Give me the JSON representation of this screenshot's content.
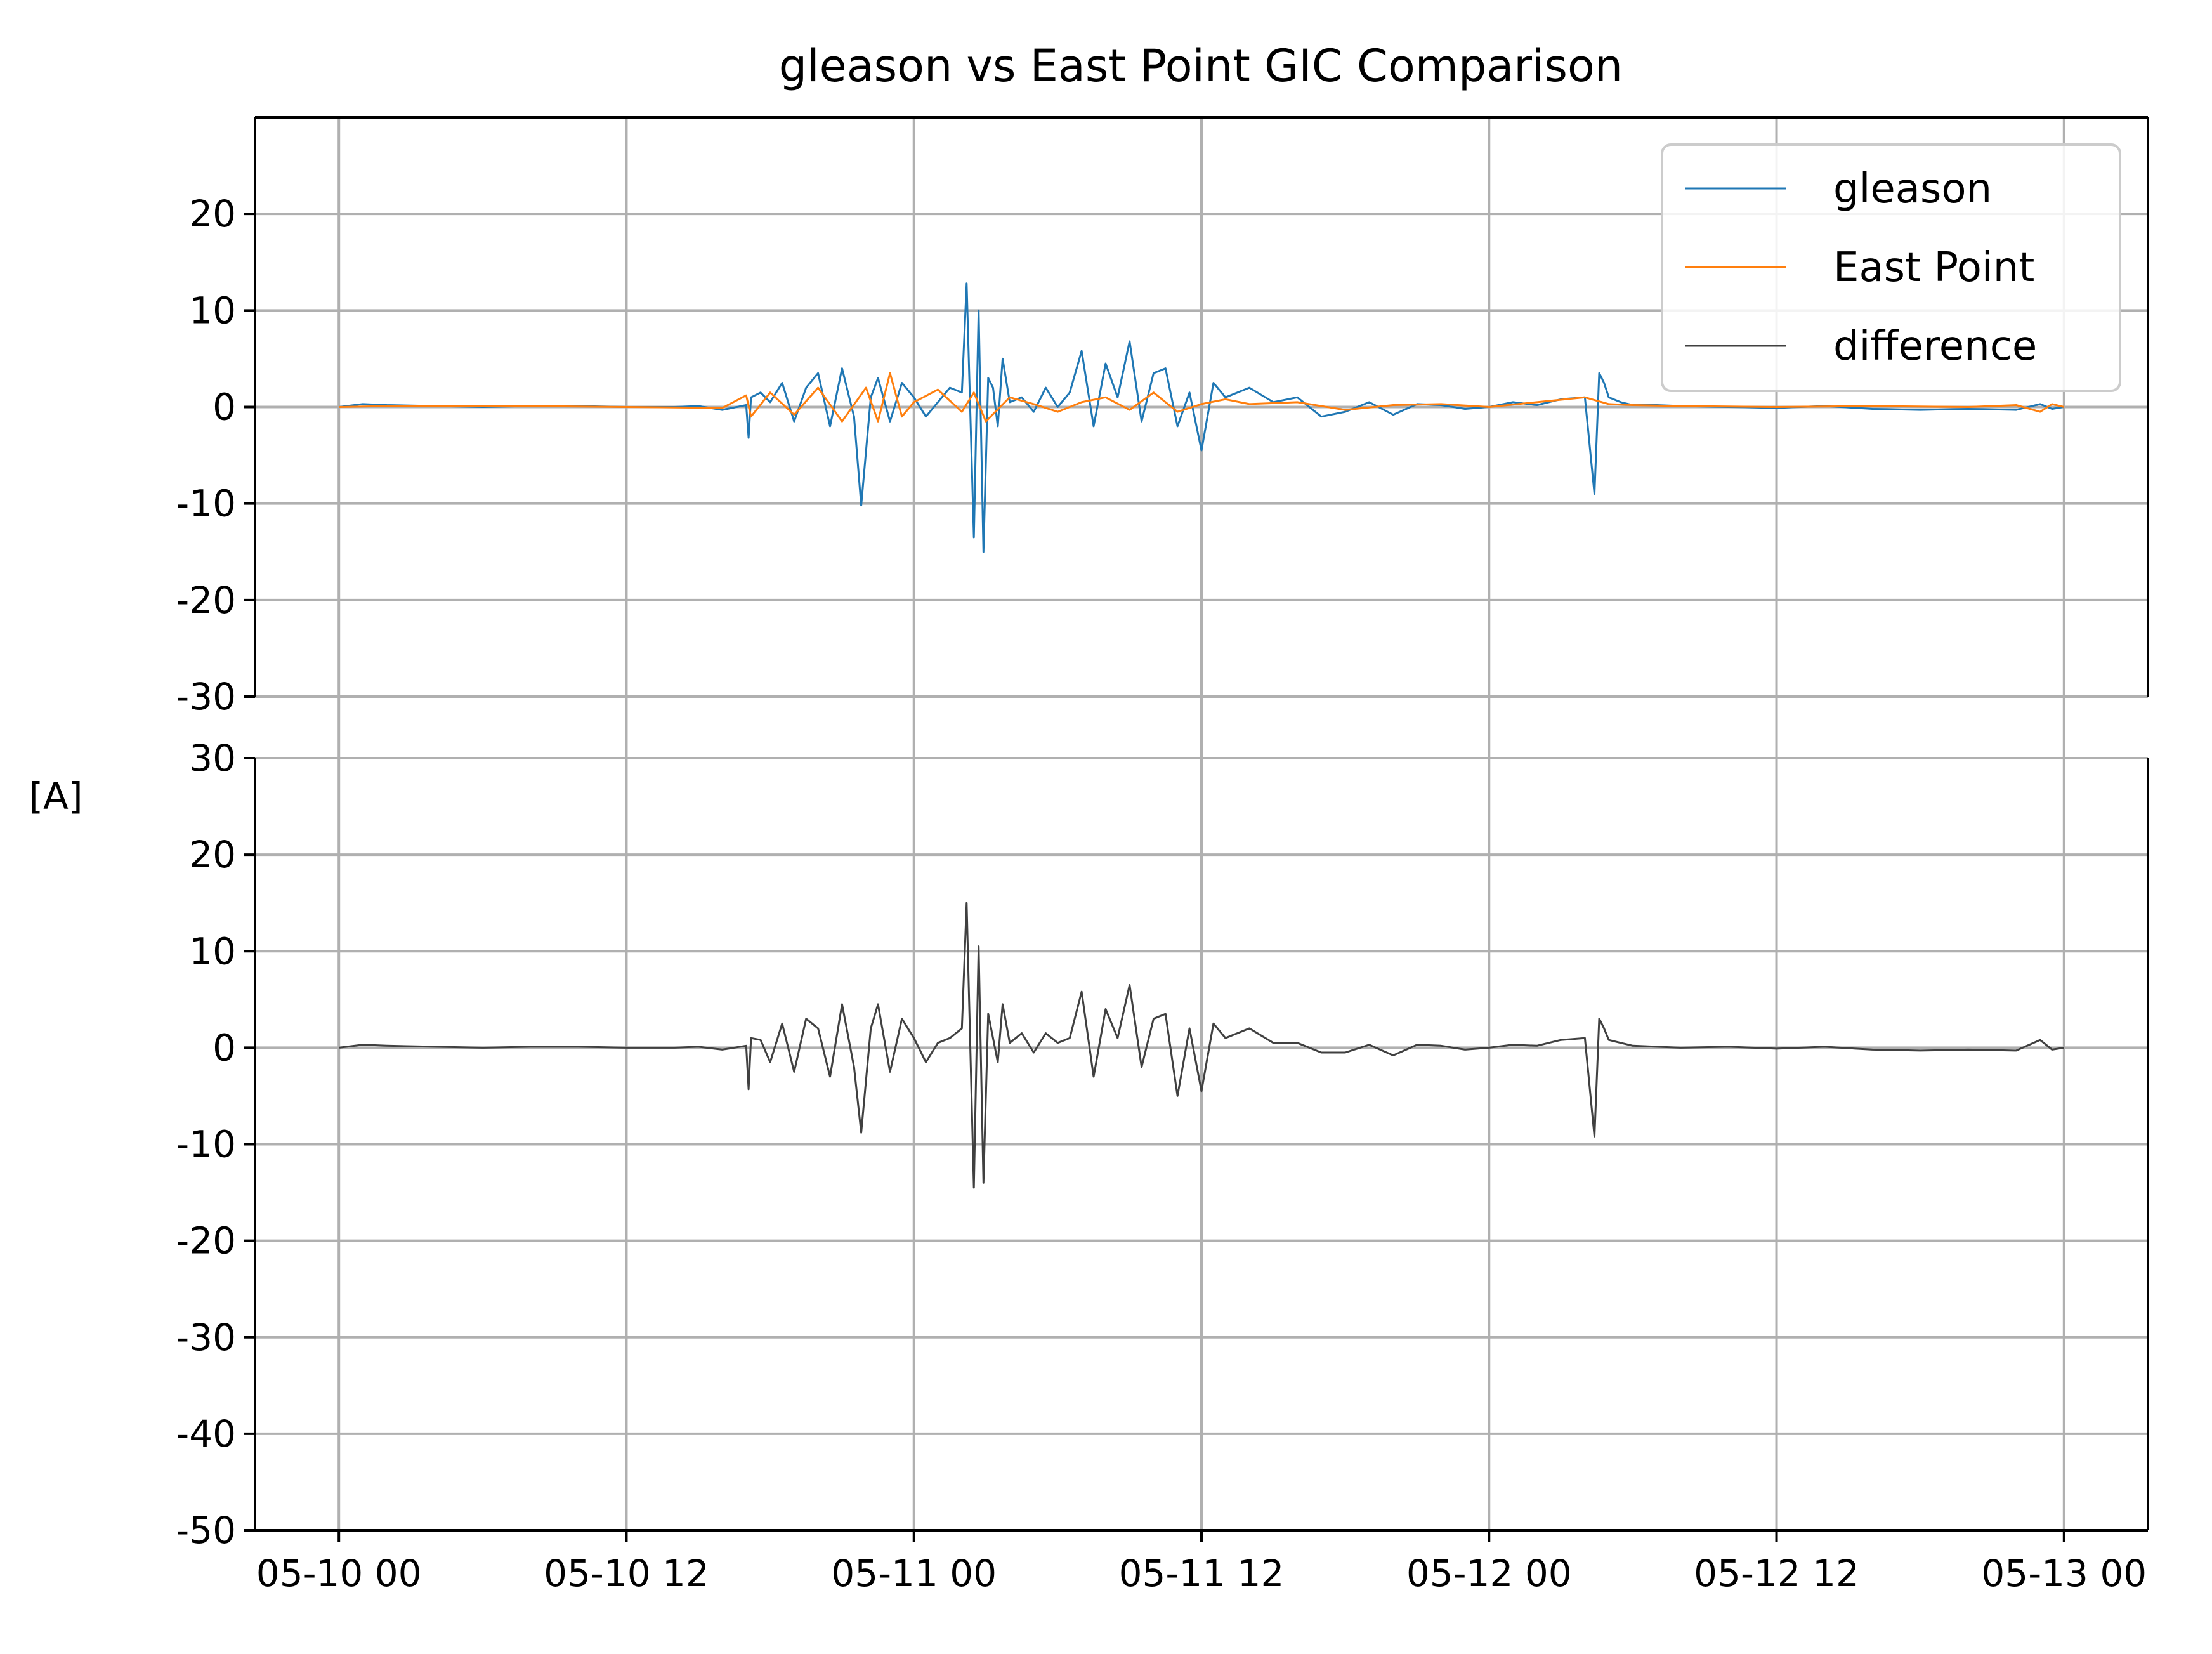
{
  "chart_data": {
    "type": "line",
    "title": "gleason vs East Point GIC Comparison",
    "ylabel": "[A]",
    "xlabel": "",
    "grid": true,
    "legend": {
      "placement": "top-right",
      "entries": [
        {
          "name": "gleason",
          "color": "#1f77b4"
        },
        {
          "name": "East Point",
          "color": "#ff7f0e"
        },
        {
          "name": "difference",
          "color": "#404040"
        }
      ]
    },
    "x_axis": {
      "unit": "hours",
      "range": [
        -3.5,
        75.5
      ],
      "ticks": [
        0,
        12,
        24,
        36,
        48,
        60,
        72
      ],
      "tick_labels": [
        "05-10 00",
        "05-10 12",
        "05-11 00",
        "05-11 12",
        "05-12 00",
        "05-12 12",
        "05-13 00"
      ]
    },
    "panels": [
      {
        "name": "top",
        "ylim": [
          -30,
          30
        ],
        "yticks": [
          20,
          10,
          0,
          -10,
          -20,
          -30
        ],
        "ytick_labels": [
          "20",
          "10",
          "0",
          "-10",
          "-20",
          "-30"
        ],
        "series": [
          {
            "name": "gleason",
            "color": "#1f77b4",
            "x": [
              0,
              1,
              2,
              4,
              6,
              8,
              10,
              12,
              14,
              15,
              16,
              17,
              17.1,
              17.2,
              17.6,
              18,
              18.5,
              19,
              19.5,
              20,
              20.5,
              21,
              21.5,
              21.8,
              22.2,
              22.5,
              23,
              23.5,
              24,
              24.5,
              25,
              25.5,
              26,
              26.2,
              26.5,
              26.7,
              26.9,
              27.1,
              27.3,
              27.5,
              27.7,
              28,
              28.5,
              29,
              29.5,
              30,
              30.5,
              31,
              31.5,
              32,
              32.5,
              33,
              33.5,
              34,
              34.5,
              35,
              35.5,
              36,
              36.5,
              37,
              38,
              39,
              40,
              41,
              42,
              43,
              44,
              45,
              46,
              47,
              48,
              49,
              50,
              51,
              52,
              52.4,
              52.6,
              52.8,
              53,
              53.5,
              54,
              55,
              56,
              58,
              60,
              62,
              64,
              66,
              68,
              70,
              71,
              71.5,
              72
            ],
            "y": [
              0,
              0.3,
              0.2,
              0.1,
              0,
              0.1,
              0.1,
              0,
              0,
              0.1,
              -0.3,
              0.2,
              -3.2,
              1.0,
              1.5,
              0.5,
              2.5,
              -1.5,
              2.0,
              3.5,
              -2.0,
              4.0,
              -1.0,
              -10.2,
              1.0,
              3.0,
              -1.5,
              2.5,
              1.0,
              -1.0,
              0.5,
              2.0,
              1.5,
              12.8,
              -13.5,
              10.0,
              -15.0,
              3.0,
              2.0,
              -2.0,
              5.0,
              0.5,
              1.0,
              -0.5,
              2.0,
              0.0,
              1.5,
              5.8,
              -2.0,
              4.5,
              1.0,
              6.8,
              -1.5,
              3.5,
              4.0,
              -2.0,
              1.5,
              -4.5,
              2.5,
              1.0,
              2.0,
              0.5,
              1.0,
              -1.0,
              -0.5,
              0.5,
              -0.8,
              0.3,
              0.2,
              -0.2,
              0.0,
              0.5,
              0.2,
              0.8,
              1.0,
              -9.0,
              3.5,
              2.5,
              1.0,
              0.5,
              0.2,
              0.2,
              0.1,
              0.0,
              -0.1,
              0.1,
              -0.2,
              -0.3,
              -0.2,
              -0.3,
              0.3,
              -0.2,
              0.0
            ]
          },
          {
            "name": "East Point",
            "color": "#ff7f0e",
            "x": [
              0,
              2,
              4,
              8,
              12,
              16,
              17,
              17.2,
              18,
              19,
              20,
              21,
              22,
              22.5,
              23,
              23.5,
              24,
              25,
              26,
              26.5,
              27,
              28,
              29,
              30,
              31,
              32,
              33,
              34,
              35,
              36,
              37,
              38,
              40,
              42,
              44,
              46,
              48,
              50,
              52,
              53,
              54,
              56,
              60,
              64,
              68,
              70,
              71,
              71.5,
              72
            ],
            "y": [
              0,
              0.1,
              0.1,
              0.1,
              0.0,
              -0.1,
              1.2,
              -1.0,
              1.5,
              -0.8,
              2.0,
              -1.5,
              2.0,
              -1.5,
              3.5,
              -1.0,
              0.5,
              1.8,
              -0.5,
              1.5,
              -1.5,
              1.0,
              0.3,
              -0.5,
              0.5,
              1.0,
              -0.3,
              1.5,
              -0.5,
              0.3,
              0.8,
              0.3,
              0.5,
              -0.3,
              0.2,
              0.3,
              0.0,
              0.5,
              1.0,
              0.3,
              0.2,
              0.1,
              0.0,
              0.1,
              0.0,
              0.2,
              -0.5,
              0.3,
              0.0
            ]
          }
        ]
      },
      {
        "name": "bottom",
        "ylim": [
          -50,
          30
        ],
        "yticks": [
          30,
          20,
          10,
          0,
          -10,
          -20,
          -30,
          -40,
          -50
        ],
        "ytick_labels": [
          "30",
          "20",
          "10",
          "0",
          "-10",
          "-20",
          "-30",
          "-40",
          "-50"
        ],
        "series": [
          {
            "name": "difference",
            "color": "#404040",
            "x": [
              0,
              1,
              2,
              4,
              6,
              8,
              10,
              12,
              14,
              15,
              16,
              17,
              17.1,
              17.2,
              17.6,
              18,
              18.5,
              19,
              19.5,
              20,
              20.5,
              21,
              21.5,
              21.8,
              22.2,
              22.5,
              23,
              23.5,
              24,
              24.5,
              25,
              25.5,
              26,
              26.2,
              26.5,
              26.7,
              26.9,
              27.1,
              27.3,
              27.5,
              27.7,
              28,
              28.5,
              29,
              29.5,
              30,
              30.5,
              31,
              31.5,
              32,
              32.5,
              33,
              33.5,
              34,
              34.5,
              35,
              35.5,
              36,
              36.5,
              37,
              38,
              39,
              40,
              41,
              42,
              43,
              44,
              45,
              46,
              47,
              48,
              49,
              50,
              51,
              52,
              52.4,
              52.6,
              52.8,
              53,
              53.5,
              54,
              55,
              56,
              58,
              60,
              62,
              64,
              66,
              68,
              70,
              71,
              71.5,
              72
            ],
            "y": [
              0,
              0.3,
              0.2,
              0.1,
              0,
              0.1,
              0.1,
              0,
              0,
              0.1,
              -0.2,
              0.2,
              -4.3,
              1.0,
              0.8,
              -1.5,
              2.5,
              -2.5,
              3.0,
              2.0,
              -3.0,
              4.5,
              -2.0,
              -8.8,
              2.0,
              4.5,
              -2.5,
              3.0,
              1.0,
              -1.5,
              0.5,
              1.0,
              2.0,
              15.0,
              -14.5,
              10.5,
              -14.0,
              3.5,
              1.0,
              -1.5,
              4.5,
              0.5,
              1.5,
              -0.5,
              1.5,
              0.5,
              1.0,
              5.8,
              -3.0,
              4.0,
              1.0,
              6.5,
              -2.0,
              3.0,
              3.5,
              -5.0,
              2.0,
              -4.5,
              2.5,
              1.0,
              2.0,
              0.5,
              0.5,
              -0.5,
              -0.5,
              0.3,
              -0.8,
              0.3,
              0.2,
              -0.2,
              0.0,
              0.3,
              0.2,
              0.8,
              1.0,
              -9.2,
              3.0,
              2.0,
              0.8,
              0.5,
              0.2,
              0.1,
              0.0,
              0.1,
              -0.1,
              0.1,
              -0.2,
              -0.3,
              -0.2,
              -0.3,
              0.8,
              -0.2,
              0.0
            ]
          }
        ]
      }
    ]
  }
}
